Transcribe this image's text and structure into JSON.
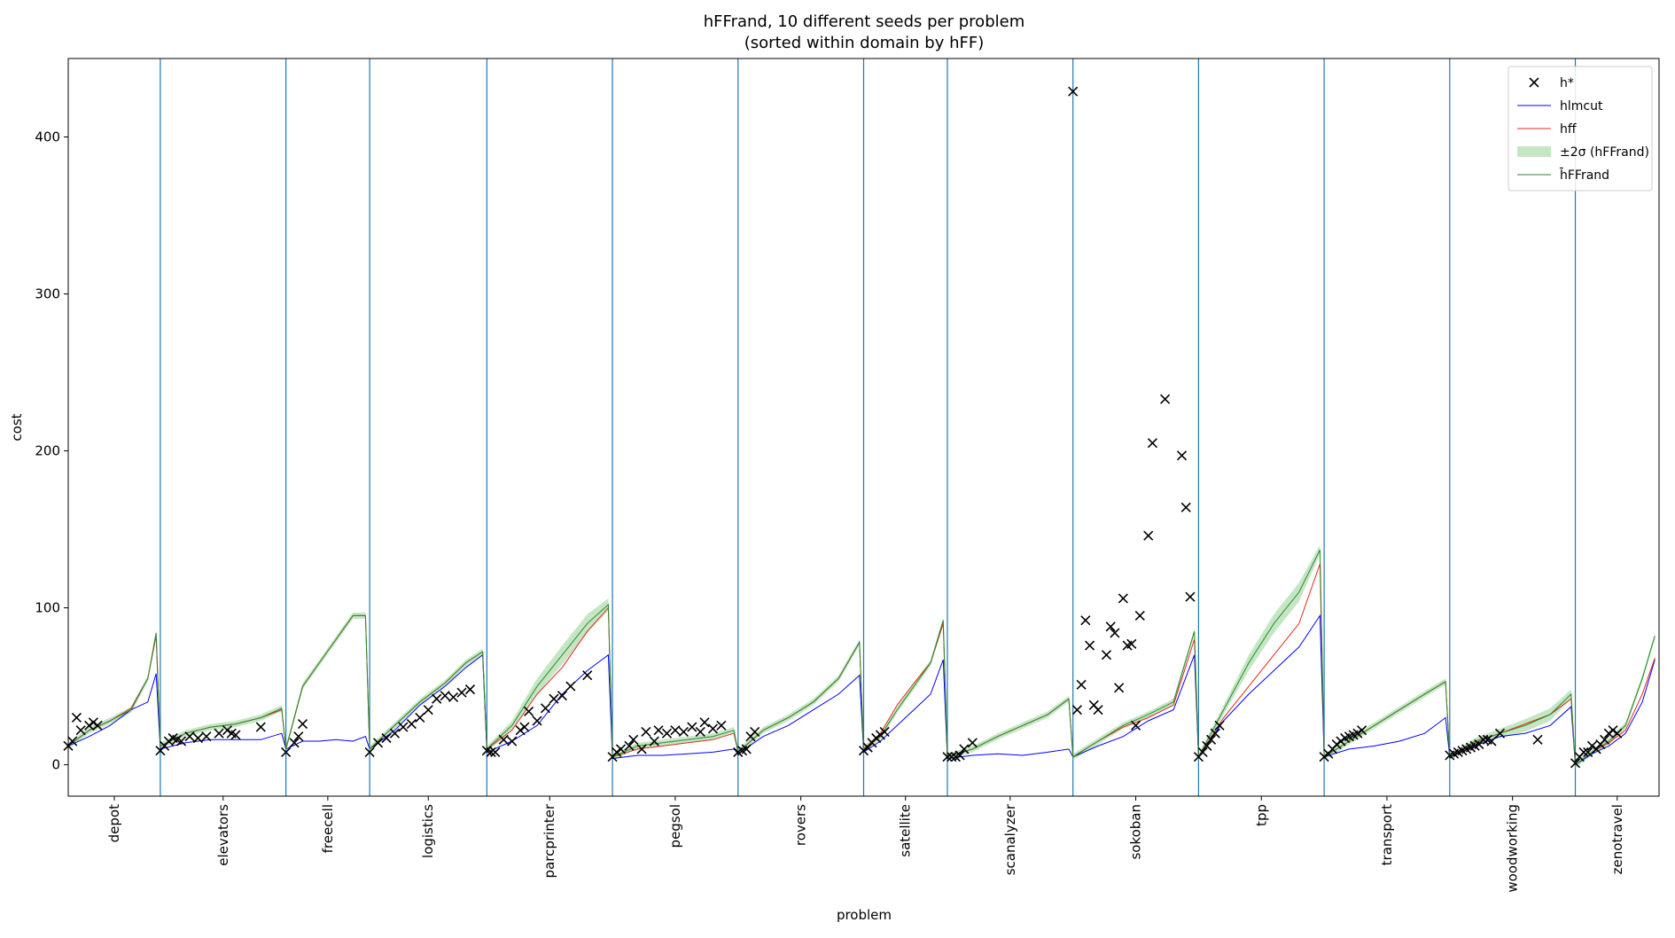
{
  "chart_data": {
    "type": "line",
    "title": "hFFrand, 10 different seeds per problem",
    "subtitle": "(sorted within domain by hFF)",
    "x_label": "problem",
    "y_label": "cost",
    "categories": [
      "depot",
      "elevators",
      "freecell",
      "logistics",
      "parcprinter",
      "pegsol",
      "rovers",
      "satellite",
      "scanalyzer",
      "sokoban",
      "tpp",
      "transport",
      "woodworking",
      "zenotravel"
    ],
    "category_bounds": [
      0,
      22,
      52,
      72,
      100,
      130,
      160,
      190,
      210,
      240,
      270,
      300,
      330,
      360,
      380
    ],
    "boundary_color": "#1f77b4",
    "xlim": [
      0,
      380
    ],
    "ylim": [
      -20,
      450
    ],
    "yticks": [
      0,
      100,
      200,
      300,
      400
    ],
    "legend": "upper right",
    "x": [
      0,
      5,
      10,
      15,
      19,
      21,
      22,
      28,
      34,
      40,
      46,
      51,
      52,
      56,
      60,
      64,
      68,
      71,
      72,
      78,
      84,
      90,
      95,
      99,
      100,
      106,
      112,
      118,
      124,
      129,
      130,
      136,
      142,
      148,
      154,
      159,
      160,
      166,
      172,
      178,
      184,
      189,
      190,
      194,
      198,
      202,
      206,
      209,
      210,
      216,
      222,
      228,
      234,
      239,
      240,
      246,
      252,
      258,
      264,
      269,
      270,
      276,
      282,
      288,
      294,
      299,
      300,
      306,
      312,
      318,
      324,
      329,
      330,
      336,
      342,
      348,
      354,
      359,
      360,
      364,
      368,
      372,
      376,
      379
    ],
    "series": [
      {
        "name": "h*",
        "type": "scatter",
        "color": "#000000",
        "x": [
          0,
          1,
          2,
          3,
          5,
          6,
          7,
          22,
          23,
          24,
          25,
          26,
          27,
          29,
          31,
          33,
          36,
          38,
          39,
          40,
          46,
          52,
          54,
          55,
          56,
          72,
          74,
          76,
          78,
          80,
          82,
          84,
          86,
          88,
          90,
          92,
          94,
          96,
          100,
          101,
          102,
          104,
          106,
          108,
          109,
          110,
          112,
          114,
          116,
          118,
          120,
          124,
          130,
          131,
          132,
          134,
          135,
          137,
          138,
          140,
          141,
          143,
          145,
          147,
          149,
          151,
          152,
          154,
          156,
          160,
          161,
          162,
          163,
          164,
          190,
          191,
          192,
          193,
          194,
          195,
          210,
          211,
          212,
          213,
          214,
          216,
          240,
          241,
          242,
          243,
          244,
          245,
          246,
          248,
          249,
          250,
          251,
          252,
          253,
          254,
          255,
          256,
          258,
          259,
          262,
          266,
          267,
          268,
          270,
          271,
          272,
          273,
          274,
          275,
          300,
          301,
          302,
          303,
          304,
          305,
          306,
          307,
          308,
          309,
          330,
          331,
          332,
          333,
          334,
          335,
          336,
          337,
          338,
          339,
          340,
          342,
          351,
          360,
          361,
          362,
          363,
          364,
          365,
          366,
          367,
          368,
          369,
          370
        ],
        "values": [
          12,
          15,
          30,
          22,
          25,
          27,
          25,
          9,
          12,
          15,
          17,
          16,
          15,
          18,
          17,
          18,
          20,
          22,
          20,
          19,
          24,
          8,
          14,
          18,
          26,
          8,
          14,
          17,
          20,
          24,
          26,
          30,
          35,
          42,
          44,
          43,
          46,
          48,
          9,
          8,
          8,
          16,
          15,
          22,
          24,
          34,
          28,
          36,
          42,
          44,
          50,
          57,
          5,
          8,
          10,
          12,
          16,
          10,
          21,
          15,
          22,
          20,
          22,
          21,
          24,
          21,
          27,
          23,
          25,
          8,
          9,
          10,
          18,
          21,
          9,
          11,
          14,
          17,
          19,
          21,
          5,
          5,
          5,
          6,
          10,
          14,
          429,
          35,
          51,
          92,
          76,
          38,
          35,
          70,
          88,
          84,
          49,
          106,
          76,
          77,
          25,
          95,
          146,
          205,
          233,
          197,
          164,
          107,
          5,
          8,
          12,
          16,
          20,
          25,
          5,
          7,
          10,
          13,
          15,
          17,
          18,
          19,
          20,
          22,
          6,
          7,
          8,
          9,
          10,
          11,
          12,
          13,
          16,
          16,
          15,
          20,
          16,
          1,
          5,
          8,
          8,
          12,
          10,
          13,
          16,
          20,
          22,
          20
        ]
      },
      {
        "name": "hlmcut",
        "type": "line",
        "color": "#0000ff",
        "values": [
          12,
          18,
          25,
          35,
          40,
          58,
          10,
          14,
          16,
          16,
          16,
          20,
          10,
          15,
          15,
          16,
          15,
          18,
          10,
          22,
          38,
          50,
          62,
          70,
          8,
          15,
          25,
          45,
          60,
          70,
          4,
          6,
          6,
          7,
          8,
          10,
          7,
          18,
          25,
          35,
          45,
          57,
          8,
          15,
          25,
          35,
          45,
          67,
          4,
          6,
          7,
          6,
          8,
          10,
          5,
          12,
          18,
          28,
          35,
          70,
          5,
          28,
          45,
          60,
          75,
          95,
          5,
          10,
          12,
          15,
          20,
          30,
          5,
          12,
          18,
          20,
          25,
          37,
          0,
          7,
          12,
          20,
          40,
          67
        ]
      },
      {
        "name": "hff",
        "type": "line",
        "color": "#e8261a",
        "values": [
          12,
          22,
          28,
          36,
          55,
          82,
          12,
          20,
          24,
          26,
          30,
          35,
          10,
          50,
          65,
          80,
          95,
          95,
          10,
          25,
          40,
          52,
          65,
          72,
          10,
          22,
          45,
          62,
          85,
          100,
          5,
          10,
          12,
          14,
          16,
          20,
          8,
          22,
          30,
          40,
          55,
          78,
          10,
          20,
          38,
          52,
          65,
          90,
          5,
          10,
          18,
          25,
          32,
          42,
          5,
          15,
          24,
          30,
          38,
          80,
          5,
          30,
          50,
          70,
          90,
          128,
          5,
          15,
          25,
          35,
          45,
          53,
          5,
          14,
          20,
          26,
          32,
          42,
          0,
          8,
          14,
          22,
          45,
          68
        ]
      },
      {
        "name": "±2σ (hFFrand)",
        "type": "band",
        "color": "#a6d8a6",
        "lower": [
          10,
          20,
          26,
          33,
          53,
          82,
          10,
          18,
          22,
          24,
          28,
          34,
          8,
          48,
          63,
          78,
          93,
          93,
          8,
          23,
          38,
          50,
          63,
          70,
          8,
          22,
          45,
          64,
          84,
          98,
          3,
          10,
          12,
          14,
          16,
          20,
          6,
          20,
          28,
          38,
          53,
          76,
          8,
          16,
          33,
          48,
          63,
          90,
          3,
          8,
          16,
          23,
          30,
          40,
          3,
          13,
          23,
          30,
          38,
          83,
          3,
          32,
          60,
          84,
          104,
          134,
          3,
          13,
          23,
          33,
          43,
          51,
          3,
          13,
          17,
          21,
          28,
          42,
          -2,
          6,
          13,
          23,
          53,
          80
        ],
        "upper": [
          14,
          24,
          30,
          37,
          57,
          86,
          14,
          22,
          26,
          28,
          32,
          38,
          12,
          52,
          67,
          82,
          97,
          97,
          12,
          27,
          42,
          54,
          67,
          74,
          12,
          28,
          55,
          76,
          96,
          106,
          7,
          14,
          16,
          18,
          20,
          24,
          10,
          24,
          32,
          42,
          57,
          80,
          12,
          20,
          37,
          52,
          67,
          94,
          7,
          12,
          20,
          27,
          34,
          44,
          7,
          17,
          27,
          34,
          42,
          87,
          7,
          38,
          70,
          96,
          116,
          140,
          7,
          17,
          27,
          37,
          47,
          55,
          7,
          17,
          23,
          29,
          36,
          48,
          2,
          10,
          17,
          27,
          57,
          84
        ]
      },
      {
        "name": "h̄FFrand",
        "type": "line",
        "color": "#2a8a2a",
        "values": [
          12,
          22,
          28,
          35,
          55,
          84,
          12,
          20,
          24,
          26,
          30,
          36,
          10,
          50,
          65,
          80,
          95,
          95,
          10,
          25,
          40,
          52,
          65,
          72,
          10,
          25,
          50,
          70,
          90,
          102,
          5,
          12,
          14,
          16,
          18,
          22,
          8,
          22,
          30,
          40,
          55,
          78,
          10,
          18,
          35,
          50,
          65,
          92,
          5,
          10,
          18,
          25,
          32,
          42,
          5,
          15,
          25,
          32,
          40,
          85,
          5,
          35,
          65,
          90,
          110,
          137,
          5,
          15,
          25,
          35,
          45,
          53,
          5,
          15,
          20,
          25,
          32,
          45,
          0,
          8,
          15,
          25,
          55,
          82
        ]
      }
    ]
  }
}
